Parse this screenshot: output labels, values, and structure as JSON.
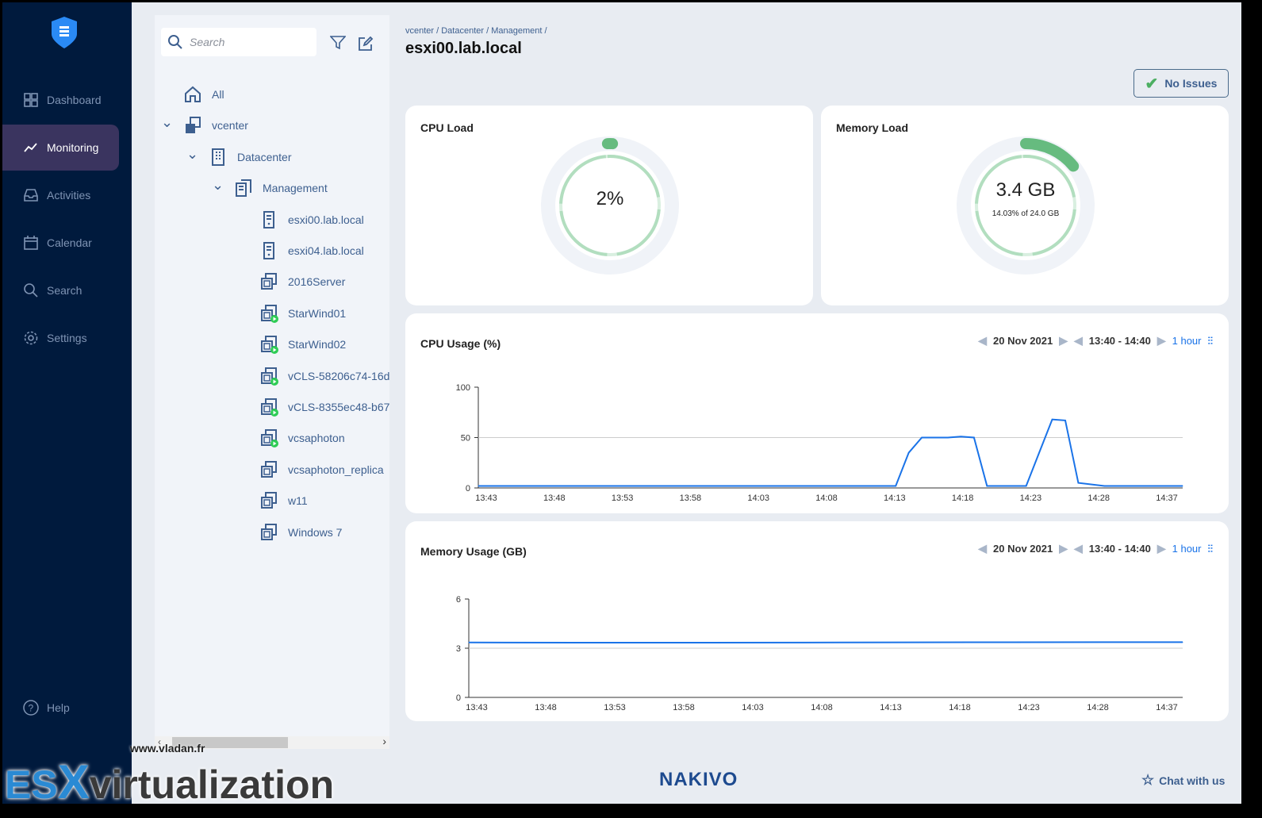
{
  "sidebar": {
    "items": [
      {
        "label": "Dashboard",
        "icon": "grid-icon"
      },
      {
        "label": "Monitoring",
        "icon": "chart-line-icon",
        "active": true
      },
      {
        "label": "Activities",
        "icon": "inbox-icon"
      },
      {
        "label": "Calendar",
        "icon": "calendar-icon"
      },
      {
        "label": "Search",
        "icon": "search-icon"
      },
      {
        "label": "Settings",
        "icon": "gear-icon"
      }
    ],
    "help": "Help"
  },
  "tree": {
    "search_placeholder": "Search",
    "items": [
      {
        "label": "All",
        "icon": "home-icon",
        "level": 0
      },
      {
        "label": "vcenter",
        "icon": "vcenter-icon",
        "level": 0,
        "expanded": true
      },
      {
        "label": "Datacenter",
        "icon": "building-icon",
        "level": 1,
        "expanded": true
      },
      {
        "label": "Management",
        "icon": "cluster-icon",
        "level": 2,
        "expanded": true
      },
      {
        "label": "esxi00.lab.local",
        "icon": "host-icon",
        "level": 3
      },
      {
        "label": "esxi04.lab.local",
        "icon": "host-icon",
        "level": 3
      },
      {
        "label": "2016Server",
        "icon": "vm-icon",
        "level": 3
      },
      {
        "label": "StarWind01",
        "icon": "vm-running-icon",
        "level": 3
      },
      {
        "label": "StarWind02",
        "icon": "vm-running-icon",
        "level": 3
      },
      {
        "label": "vCLS-58206c74-16d",
        "icon": "vm-running-icon",
        "level": 3
      },
      {
        "label": "vCLS-8355ec48-b67",
        "icon": "vm-running-icon",
        "level": 3
      },
      {
        "label": "vcsaphoton",
        "icon": "vm-running-icon",
        "level": 3
      },
      {
        "label": "vcsaphoton_replica",
        "icon": "vm-icon",
        "level": 3
      },
      {
        "label": "w11",
        "icon": "vm-icon",
        "level": 3
      },
      {
        "label": "Windows 7",
        "icon": "vm-icon",
        "level": 3
      }
    ]
  },
  "header": {
    "breadcrumb": "vcenter / Datacenter / Management /",
    "title": "esxi00.lab.local",
    "status": "No Issues"
  },
  "cpu_load": {
    "title": "CPU Load",
    "value": "2%",
    "percent": 2
  },
  "memory_load": {
    "title": "Memory Load",
    "value": "3.4 GB",
    "detail": "14.03% of 24.0 GB",
    "percent": 14.03
  },
  "controls": {
    "date": "20 Nov 2021",
    "range": "13:40 - 14:40",
    "period": "1 hour"
  },
  "chart_data": [
    {
      "type": "line",
      "title": "CPU Usage (%)",
      "ylim": [
        0,
        100
      ],
      "yticks": [
        0,
        50,
        100
      ],
      "grid": true,
      "xticks": [
        "13:43",
        "13:48",
        "13:53",
        "13:58",
        "14:03",
        "14:08",
        "14:13",
        "14:18",
        "14:23",
        "14:28",
        "14:37"
      ],
      "x": [
        "13:42",
        "13:45",
        "13:50",
        "13:55",
        "14:00",
        "14:05",
        "14:10",
        "14:14",
        "14:15",
        "14:16",
        "14:18",
        "14:19",
        "14:20",
        "14:21",
        "14:24",
        "14:25",
        "14:26",
        "14:27",
        "14:28",
        "14:30",
        "14:33",
        "14:36"
      ],
      "values": [
        2,
        2,
        2,
        2,
        2,
        2,
        2,
        2,
        35,
        50,
        50,
        51,
        50,
        2,
        2,
        35,
        68,
        67,
        5,
        2,
        2,
        2
      ],
      "color": "#1a73e8"
    },
    {
      "type": "line",
      "title": "Memory Usage (GB)",
      "ylim": [
        0,
        6
      ],
      "yticks": [
        0,
        3,
        6
      ],
      "grid": true,
      "xticks": [
        "13:43",
        "13:48",
        "13:53",
        "13:58",
        "14:03",
        "14:08",
        "14:13",
        "14:18",
        "14:23",
        "14:28",
        "14:37"
      ],
      "x": [
        "13:42",
        "13:50",
        "14:00",
        "14:10",
        "14:20",
        "14:30",
        "14:36"
      ],
      "values": [
        3.35,
        3.34,
        3.34,
        3.35,
        3.36,
        3.37,
        3.37
      ],
      "color": "#1a73e8"
    }
  ],
  "footer": {
    "brand": "NAKIVO",
    "chat": "Chat with us"
  },
  "watermark": {
    "url": "www.vladan.fr",
    "es": "ES",
    "x": "X",
    "rest": "virtualization"
  },
  "colors": {
    "sidebar": "#001a3d",
    "active": "#3a345f",
    "gauge": "#66bb7f",
    "line": "#1a73e8"
  }
}
